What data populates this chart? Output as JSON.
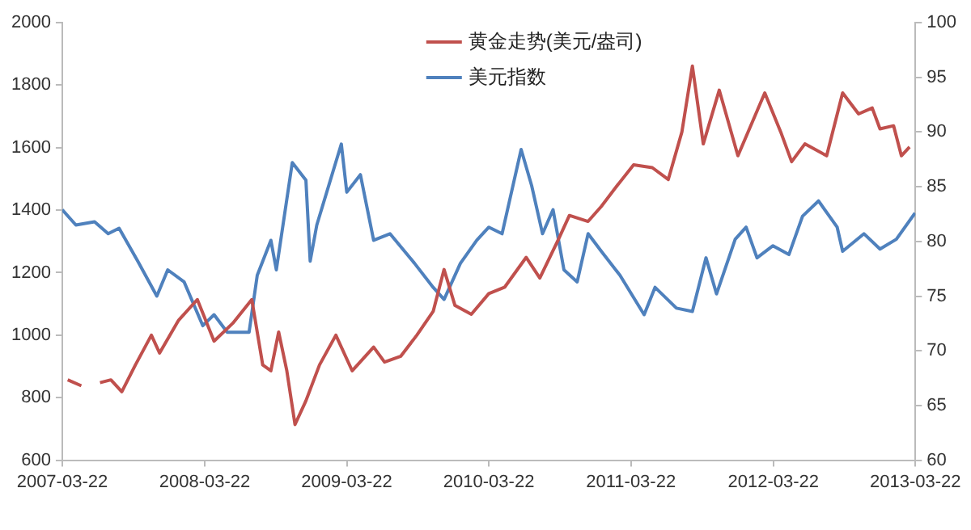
{
  "chart_data": {
    "type": "line",
    "legend": "top",
    "grid": false,
    "marker": "none",
    "line_style": "solid",
    "xlim": [
      "2007-03-22",
      "2013-03-22"
    ],
    "xticks": [
      "2007-03-22",
      "2008-03-22",
      "2009-03-22",
      "2010-03-22",
      "2011-03-22",
      "2012-03-22",
      "2013-03-22"
    ],
    "ylim": [
      600,
      2000
    ],
    "yticks": [
      600,
      800,
      1000,
      1200,
      1400,
      1600,
      1800,
      2000
    ],
    "y2lim": [
      60,
      100
    ],
    "y2ticks": [
      60,
      65,
      70,
      75,
      80,
      85,
      90,
      95,
      100
    ],
    "series": [
      {
        "name": "黄金走势(美元/盎司)",
        "color": "#c0504d",
        "x": [
          "2007-04-05",
          "2007-05-10",
          "2007-06-01",
          "2007-06-27",
          "2007-07-25",
          "2007-08-22",
          "2007-09-26",
          "2007-11-06",
          "2007-11-27",
          "2008-01-15",
          "2008-03-03",
          "2008-04-15",
          "2008-06-02",
          "2008-07-21",
          "2008-08-18",
          "2008-09-08",
          "2008-09-28",
          "2008-10-19",
          "2008-11-09",
          "2008-12-07",
          "2009-01-11",
          "2009-02-22",
          "2009-04-05",
          "2009-05-30",
          "2009-06-27",
          "2009-08-08",
          "2009-09-18",
          "2009-10-30",
          "2009-11-27",
          "2009-12-25",
          "2010-02-05",
          "2010-03-22",
          "2010-05-02",
          "2010-06-26",
          "2010-07-31",
          "2010-09-17",
          "2010-10-15",
          "2010-12-02",
          "2011-01-05",
          "2011-02-15",
          "2011-03-29",
          "2011-05-16",
          "2011-06-26",
          "2011-07-31",
          "2011-08-27",
          "2011-09-24",
          "2011-11-04",
          "2011-12-22",
          "2012-02-29",
          "2012-04-10",
          "2012-05-08",
          "2012-06-11",
          "2012-08-06",
          "2012-09-16",
          "2012-10-27",
          "2012-12-01",
          "2012-12-21",
          "2013-01-25",
          "2013-02-14",
          "2013-03-07"
        ],
        "values": [
          857,
          838,
          null,
          848,
          857,
          819,
          905,
          1000,
          943,
          1048,
          1114,
          981,
          1038,
          1114,
          905,
          886,
          1010,
          886,
          714,
          790,
          905,
          1000,
          886,
          962,
          914,
          933,
          1000,
          1076,
          1210,
          1095,
          1067,
          1133,
          1154,
          1249,
          1183,
          1307,
          1383,
          1364,
          1412,
          1479,
          1545,
          1536,
          1498,
          1650,
          1861,
          1612,
          1784,
          1574,
          1775,
          1650,
          1555,
          1612,
          1574,
          1775,
          1708,
          1727,
          1660,
          1670,
          1574,
          1602
        ]
      },
      {
        "name": "美元指数",
        "color": "#4f81bd",
        "axis": "y2",
        "x": [
          "2007-03-22",
          "2007-04-26",
          "2007-06-13",
          "2007-07-18",
          "2007-08-15",
          "2007-10-02",
          "2007-11-20",
          "2007-12-18",
          "2008-01-29",
          "2008-03-17",
          "2008-04-15",
          "2008-05-19",
          "2008-07-14",
          "2008-08-04",
          "2008-09-08",
          "2008-09-22",
          "2008-11-02",
          "2008-12-07",
          "2008-12-18",
          "2009-01-04",
          "2009-03-08",
          "2009-03-22",
          "2009-04-26",
          "2009-05-30",
          "2009-07-11",
          "2009-09-12",
          "2009-10-30",
          "2009-11-27",
          "2010-01-08",
          "2010-02-19",
          "2010-03-22",
          "2010-04-25",
          "2010-06-13",
          "2010-07-10",
          "2010-08-07",
          "2010-09-03",
          "2010-10-01",
          "2010-11-04",
          "2010-12-02",
          "2011-01-05",
          "2011-02-22",
          "2011-04-25",
          "2011-05-23",
          "2011-07-17",
          "2011-08-27",
          "2011-10-01",
          "2011-10-28",
          "2011-12-15",
          "2012-01-12",
          "2012-02-09",
          "2012-03-21",
          "2012-05-01",
          "2012-06-05",
          "2012-07-16",
          "2012-09-02",
          "2012-09-16",
          "2012-11-10",
          "2012-12-21",
          "2013-02-01",
          "2013-03-21"
        ],
        "values": [
          82.9,
          81.5,
          81.8,
          80.7,
          81.2,
          78.2,
          75.0,
          77.4,
          76.3,
          72.3,
          73.3,
          71.7,
          71.7,
          76.9,
          80.1,
          77.4,
          87.2,
          85.6,
          78.2,
          81.5,
          88.9,
          84.5,
          86.1,
          80.1,
          80.7,
          78.0,
          75.8,
          74.7,
          78.0,
          80.1,
          81.3,
          80.7,
          88.4,
          85.1,
          80.7,
          82.9,
          77.4,
          76.3,
          80.7,
          79.1,
          76.9,
          73.3,
          75.8,
          73.9,
          73.6,
          78.5,
          75.2,
          80.2,
          81.3,
          78.5,
          79.6,
          78.8,
          82.3,
          83.7,
          81.3,
          79.1,
          80.7,
          79.3,
          80.2,
          82.6
        ]
      }
    ]
  }
}
